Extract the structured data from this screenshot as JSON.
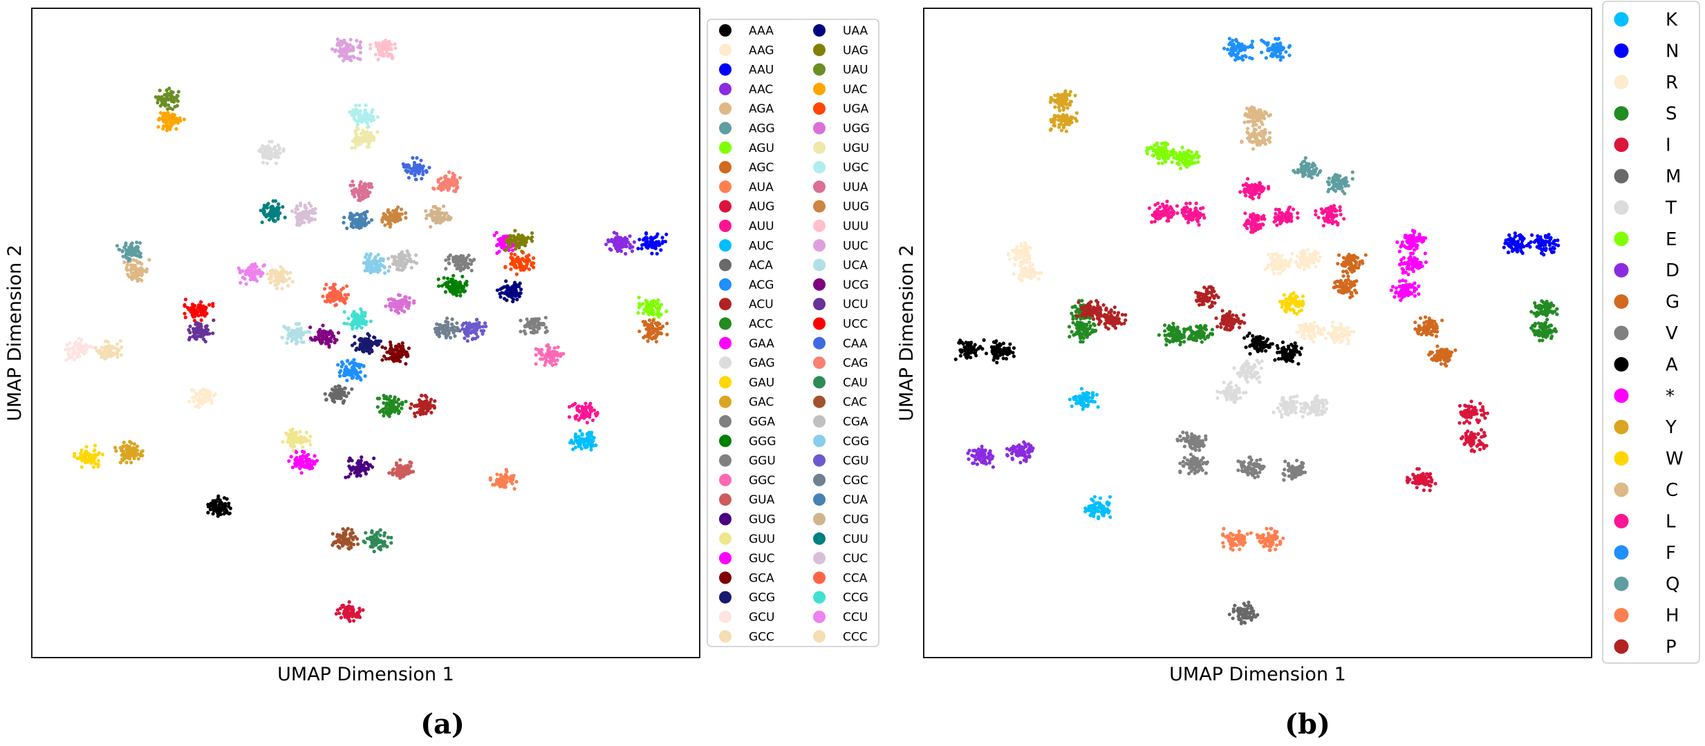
{
  "chart_data": [
    {
      "type": "scatter",
      "panel_label": "(a)",
      "xlabel": "UMAP Dimension 1",
      "ylabel": "UMAP Dimension 2",
      "axis_ticks": false,
      "grid": false,
      "legend": {
        "placement": "right, outside",
        "columns": 2
      },
      "series": [
        {
          "name": "AAA",
          "color": "#000000",
          "clusters": [
            [
              0.282,
              0.232
            ]
          ]
        },
        {
          "name": "AAG",
          "color": "#ffebcd",
          "clusters": [
            [
              0.256,
              0.402
            ]
          ]
        },
        {
          "name": "AAU",
          "color": "#0000ff",
          "clusters": [
            [
              0.929,
              0.638
            ]
          ]
        },
        {
          "name": "AAC",
          "color": "#8a2be2",
          "clusters": [
            [
              0.881,
              0.638
            ]
          ]
        },
        {
          "name": "AGA",
          "color": "#deb887",
          "clusters": [
            [
              0.156,
              0.596
            ]
          ]
        },
        {
          "name": "AGG",
          "color": "#5f9ea0",
          "clusters": [
            [
              0.149,
              0.628
            ]
          ]
        },
        {
          "name": "AGU",
          "color": "#7fff00",
          "clusters": [
            [
              0.929,
              0.538
            ]
          ]
        },
        {
          "name": "AGC",
          "color": "#d2691e",
          "clusters": [
            [
              0.93,
              0.503
            ]
          ]
        },
        {
          "name": "AUA",
          "color": "#ff7f50",
          "clusters": [
            [
              0.705,
              0.274
            ]
          ]
        },
        {
          "name": "AUG",
          "color": "#dc143c",
          "clusters": [
            [
              0.477,
              0.069
            ]
          ]
        },
        {
          "name": "AUU",
          "color": "#ff1493",
          "clusters": [
            [
              0.826,
              0.378
            ]
          ]
        },
        {
          "name": "AUC",
          "color": "#00bfff",
          "clusters": [
            [
              0.825,
              0.334
            ]
          ]
        },
        {
          "name": "ACA",
          "color": "#696969",
          "clusters": [
            [
              0.459,
              0.407
            ]
          ]
        },
        {
          "name": "ACG",
          "color": "#1e90ff",
          "clusters": [
            [
              0.478,
              0.442
            ]
          ]
        },
        {
          "name": "ACU",
          "color": "#b22222",
          "clusters": [
            [
              0.588,
              0.387
            ]
          ]
        },
        {
          "name": "ACC",
          "color": "#228b22",
          "clusters": [
            [
              0.539,
              0.387
            ]
          ]
        },
        {
          "name": "GAA",
          "color": "#ff00ff",
          "clusters": [
            [
              0.406,
              0.301
            ]
          ]
        },
        {
          "name": "GAG",
          "color": "#dcdcdc",
          "clusters": [
            [
              0.356,
              0.778
            ]
          ]
        },
        {
          "name": "GAU",
          "color": "#ffd700",
          "clusters": [
            [
              0.085,
              0.31
            ]
          ]
        },
        {
          "name": "GAC",
          "color": "#daa520",
          "clusters": [
            [
              0.146,
              0.317
            ]
          ]
        },
        {
          "name": "GGA",
          "color": "#808080",
          "clusters": [
            [
              0.753,
              0.511
            ]
          ]
        },
        {
          "name": "GGG",
          "color": "#008000",
          "clusters": [
            [
              0.63,
              0.572
            ]
          ]
        },
        {
          "name": "GGU",
          "color": "#808080",
          "clusters": [
            [
              0.641,
              0.61
            ]
          ]
        },
        {
          "name": "GGC",
          "color": "#ff69b4",
          "clusters": [
            [
              0.776,
              0.465
            ]
          ]
        },
        {
          "name": "GUA",
          "color": "#cd5c5c",
          "clusters": [
            [
              0.556,
              0.288
            ]
          ]
        },
        {
          "name": "GUG",
          "color": "#4b0082",
          "clusters": [
            [
              0.491,
              0.292
            ]
          ]
        },
        {
          "name": "GUU",
          "color": "#f0e68c",
          "clusters": [
            [
              0.396,
              0.335
            ]
          ]
        },
        {
          "name": "GUC",
          "color": "#ff00ff",
          "clusters": [
            [
              0.709,
              0.638
            ]
          ]
        },
        {
          "name": "GCA",
          "color": "#800000",
          "clusters": [
            [
              0.546,
              0.469
            ]
          ]
        },
        {
          "name": "GCG",
          "color": "#191970",
          "clusters": [
            [
              0.501,
              0.483
            ]
          ]
        },
        {
          "name": "GCU",
          "color": "#ffe4e1",
          "clusters": [
            [
              0.069,
              0.475
            ]
          ]
        },
        {
          "name": "GCC",
          "color": "#f5deb3",
          "clusters": [
            [
              0.113,
              0.471
            ]
          ]
        },
        {
          "name": "UAA",
          "color": "#000080",
          "clusters": [
            [
              0.717,
              0.565
            ]
          ]
        },
        {
          "name": "UAG",
          "color": "#808000",
          "clusters": [
            [
              0.728,
              0.642
            ]
          ]
        },
        {
          "name": "UAU",
          "color": "#6b8e23",
          "clusters": [
            [
              0.205,
              0.86
            ]
          ]
        },
        {
          "name": "UAC",
          "color": "#ffa500",
          "clusters": [
            [
              0.207,
              0.827
            ]
          ]
        },
        {
          "name": "UGA",
          "color": "#ff4500",
          "clusters": [
            [
              0.73,
              0.607
            ]
          ]
        },
        {
          "name": "UGG",
          "color": "#da70d6",
          "clusters": [
            [
              0.551,
              0.545
            ]
          ]
        },
        {
          "name": "UGU",
          "color": "#eee8aa",
          "clusters": [
            [
              0.497,
              0.8
            ]
          ]
        },
        {
          "name": "UGC",
          "color": "#afeeee",
          "clusters": [
            [
              0.497,
              0.834
            ]
          ]
        },
        {
          "name": "UUA",
          "color": "#db7093",
          "clusters": [
            [
              0.495,
              0.721
            ]
          ]
        },
        {
          "name": "UUG",
          "color": "#cd853f",
          "clusters": [
            [
              0.54,
              0.68
            ]
          ]
        },
        {
          "name": "UUU",
          "color": "#ffc0cb",
          "clusters": [
            [
              0.528,
              0.936
            ]
          ]
        },
        {
          "name": "UUC",
          "color": "#dda0dd",
          "clusters": [
            [
              0.471,
              0.936
            ]
          ]
        },
        {
          "name": "UCA",
          "color": "#b0e0e6",
          "clusters": [
            [
              0.396,
              0.498
            ]
          ]
        },
        {
          "name": "UCG",
          "color": "#800080",
          "clusters": [
            [
              0.438,
              0.495
            ]
          ]
        },
        {
          "name": "UCU",
          "color": "#663399",
          "clusters": [
            [
              0.251,
              0.503
            ]
          ]
        },
        {
          "name": "UCC",
          "color": "#ff0000",
          "clusters": [
            [
              0.25,
              0.535
            ]
          ]
        },
        {
          "name": "CAA",
          "color": "#4169e1",
          "clusters": [
            [
              0.574,
              0.753
            ]
          ]
        },
        {
          "name": "CAG",
          "color": "#fa8072",
          "clusters": [
            [
              0.621,
              0.731
            ]
          ]
        },
        {
          "name": "CAU",
          "color": "#2e8b57",
          "clusters": [
            [
              0.517,
              0.18
            ]
          ]
        },
        {
          "name": "CAC",
          "color": "#a0522d",
          "clusters": [
            [
              0.469,
              0.183
            ]
          ]
        },
        {
          "name": "CGA",
          "color": "#c0c0c0",
          "clusters": [
            [
              0.555,
              0.61
            ]
          ]
        },
        {
          "name": "CGG",
          "color": "#87ceeb",
          "clusters": [
            [
              0.513,
              0.605
            ]
          ]
        },
        {
          "name": "CGU",
          "color": "#6a5acd",
          "clusters": [
            [
              0.66,
              0.504
            ]
          ]
        },
        {
          "name": "CGC",
          "color": "#708090",
          "clusters": [
            [
              0.62,
              0.506
            ]
          ]
        },
        {
          "name": "CUA",
          "color": "#4682b4",
          "clusters": [
            [
              0.488,
              0.672
            ]
          ]
        },
        {
          "name": "CUG",
          "color": "#d2b48c",
          "clusters": [
            [
              0.608,
              0.68
            ]
          ]
        },
        {
          "name": "CUU",
          "color": "#008080",
          "clusters": [
            [
              0.358,
              0.687
            ]
          ]
        },
        {
          "name": "CUC",
          "color": "#d8bfd8",
          "clusters": [
            [
              0.406,
              0.683
            ]
          ]
        },
        {
          "name": "CCA",
          "color": "#ff6347",
          "clusters": [
            [
              0.455,
              0.558
            ]
          ]
        },
        {
          "name": "CCG",
          "color": "#40e0d0",
          "clusters": [
            [
              0.489,
              0.52
            ]
          ]
        },
        {
          "name": "CCU",
          "color": "#ee82ee",
          "clusters": [
            [
              0.331,
              0.592
            ]
          ]
        },
        {
          "name": "CCC",
          "color": "#f5deb3",
          "clusters": [
            [
              0.372,
              0.585
            ]
          ]
        }
      ]
    },
    {
      "type": "scatter",
      "panel_label": "(b)",
      "xlabel": "UMAP Dimension 1",
      "ylabel": "UMAP Dimension 2",
      "axis_ticks": false,
      "grid": false,
      "legend": {
        "placement": "right, outside",
        "columns": 1
      },
      "series": [
        {
          "name": "K",
          "color": "#00bfff",
          "clusters": [
            [
              0.24,
              0.398
            ],
            [
              0.263,
              0.231
            ]
          ]
        },
        {
          "name": "N",
          "color": "#0000ff",
          "clusters": [
            [
              0.885,
              0.637
            ],
            [
              0.929,
              0.637
            ]
          ]
        },
        {
          "name": "R",
          "color": "#ffebcd",
          "clusters": [
            [
              0.148,
              0.625
            ],
            [
              0.155,
              0.593
            ],
            [
              0.531,
              0.608
            ],
            [
              0.574,
              0.613
            ],
            [
              0.58,
              0.503
            ],
            [
              0.623,
              0.5
            ]
          ]
        },
        {
          "name": "S",
          "color": "#228b22",
          "clusters": [
            [
              0.24,
              0.533
            ],
            [
              0.239,
              0.503
            ],
            [
              0.373,
              0.498
            ],
            [
              0.411,
              0.497
            ],
            [
              0.927,
              0.537
            ],
            [
              0.928,
              0.504
            ]
          ]
        },
        {
          "name": "I",
          "color": "#dc143c",
          "clusters": [
            [
              0.823,
              0.378
            ],
            [
              0.822,
              0.334
            ],
            [
              0.745,
              0.274
            ]
          ]
        },
        {
          "name": "M",
          "color": "#696969",
          "clusters": [
            [
              0.479,
              0.069
            ]
          ]
        },
        {
          "name": "T",
          "color": "#dcdcdc",
          "clusters": [
            [
              0.486,
              0.441
            ],
            [
              0.461,
              0.407
            ],
            [
              0.545,
              0.387
            ],
            [
              0.586,
              0.387
            ]
          ]
        },
        {
          "name": "E",
          "color": "#7fff00",
          "clusters": [
            [
              0.354,
              0.778
            ],
            [
              0.395,
              0.769
            ]
          ]
        },
        {
          "name": "D",
          "color": "#8a2be2",
          "clusters": [
            [
              0.087,
              0.31
            ],
            [
              0.146,
              0.317
            ]
          ]
        },
        {
          "name": "G",
          "color": "#d2691e",
          "clusters": [
            [
              0.641,
              0.608
            ],
            [
              0.631,
              0.571
            ],
            [
              0.755,
              0.51
            ],
            [
              0.777,
              0.466
            ]
          ]
        },
        {
          "name": "V",
          "color": "#808080",
          "clusters": [
            [
              0.401,
              0.334
            ],
            [
              0.405,
              0.298
            ],
            [
              0.492,
              0.292
            ],
            [
              0.556,
              0.287
            ]
          ]
        },
        {
          "name": "A",
          "color": "#000000",
          "clusters": [
            [
              0.069,
              0.474
            ],
            [
              0.114,
              0.471
            ],
            [
              0.501,
              0.483
            ],
            [
              0.547,
              0.469
            ]
          ]
        },
        {
          "name": "*",
          "color": "#ff00ff",
          "clusters": [
            [
              0.73,
              0.642
            ],
            [
              0.731,
              0.606
            ],
            [
              0.72,
              0.565
            ]
          ]
        },
        {
          "name": "Y",
          "color": "#daa520",
          "clusters": [
            [
              0.206,
              0.86
            ],
            [
              0.208,
              0.827
            ]
          ]
        },
        {
          "name": "W",
          "color": "#ffd700",
          "clusters": [
            [
              0.553,
              0.545
            ]
          ]
        },
        {
          "name": "C",
          "color": "#deb887",
          "clusters": [
            [
              0.498,
              0.834
            ],
            [
              0.497,
              0.8
            ]
          ]
        },
        {
          "name": "L",
          "color": "#ff1493",
          "clusters": [
            [
              0.495,
              0.721
            ],
            [
              0.359,
              0.686
            ],
            [
              0.405,
              0.683
            ],
            [
              0.496,
              0.672
            ],
            [
              0.54,
              0.68
            ],
            [
              0.608,
              0.68
            ]
          ]
        },
        {
          "name": "F",
          "color": "#1e90ff",
          "clusters": [
            [
              0.471,
              0.937
            ],
            [
              0.527,
              0.937
            ]
          ]
        },
        {
          "name": "Q",
          "color": "#5f9ea0",
          "clusters": [
            [
              0.574,
              0.753
            ],
            [
              0.621,
              0.731
            ]
          ]
        },
        {
          "name": "H",
          "color": "#ff7f50",
          "clusters": [
            [
              0.469,
              0.182
            ],
            [
              0.517,
              0.182
            ]
          ]
        },
        {
          "name": "P",
          "color": "#b22222",
          "clusters": [
            [
              0.249,
              0.535
            ],
            [
              0.281,
              0.523
            ],
            [
              0.423,
              0.555
            ],
            [
              0.459,
              0.518
            ]
          ]
        }
      ]
    }
  ]
}
